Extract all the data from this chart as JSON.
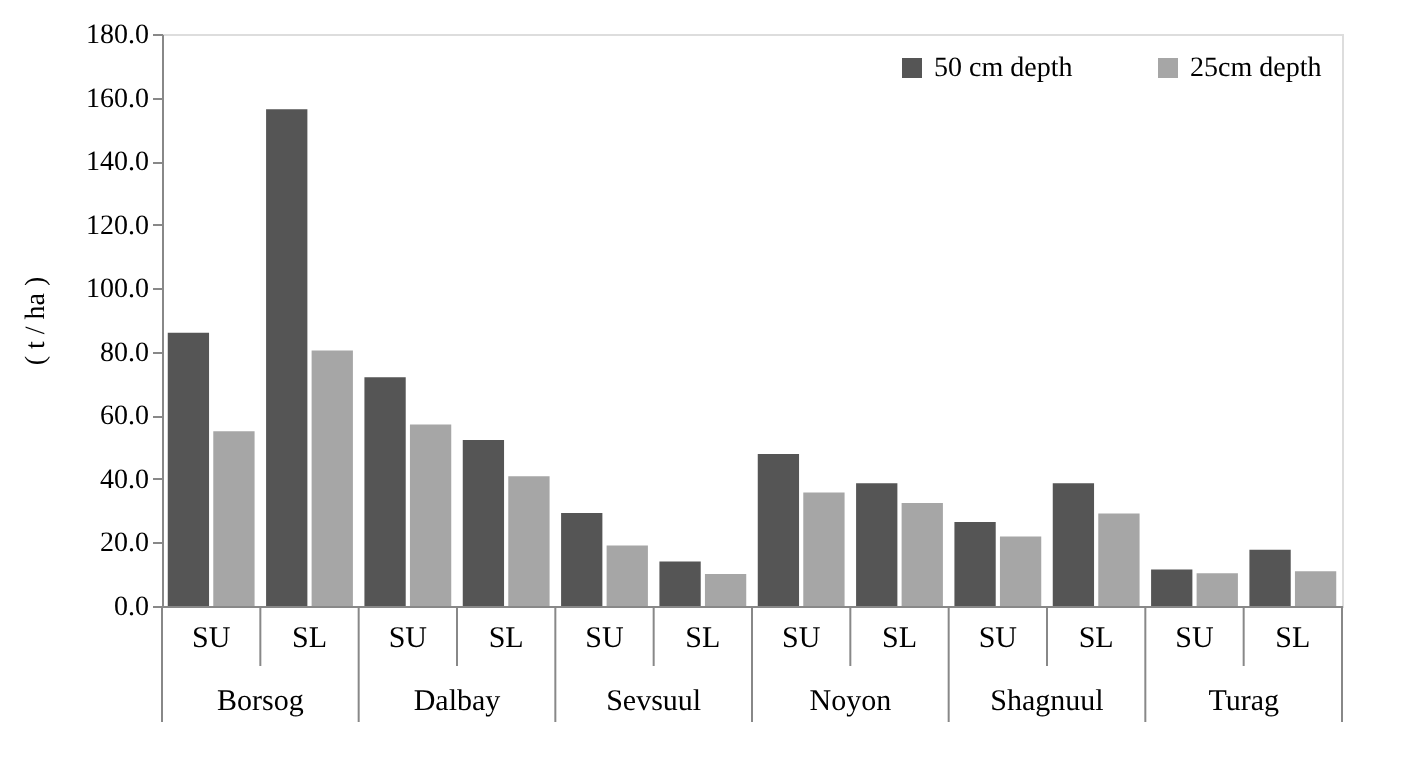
{
  "chart_data": {
    "type": "bar",
    "ylabel": "( t / ha )",
    "categories": [
      "SU",
      "SL",
      "SU",
      "SL",
      "SU",
      "SL",
      "SU",
      "SL",
      "SU",
      "SL",
      "SU",
      "SL"
    ],
    "series": [
      {
        "name": "50 cm depth",
        "color": "#555555",
        "values": [
          86.0,
          156.3,
          72.0,
          52.2,
          29.3,
          14.0,
          47.8,
          38.6,
          26.4,
          38.6,
          11.5,
          17.7
        ]
      },
      {
        "name": "25cm depth",
        "color": "#a6a6a6",
        "values": [
          55.0,
          80.4,
          57.1,
          40.8,
          19.0,
          10.1,
          35.7,
          32.4,
          21.9,
          29.1,
          10.3,
          10.9
        ]
      }
    ],
    "annotations": [
      "Borsog",
      "Dalbay",
      "Sevsuul",
      "Noyon",
      "Shagnuul",
      "Turag"
    ],
    "ylim": [
      0,
      180
    ],
    "yticks": [
      {
        "value": 0,
        "label": "0.0"
      },
      {
        "value": 20,
        "label": "20.0"
      },
      {
        "value": 40,
        "label": "40.0"
      },
      {
        "value": 60,
        "label": "60.0"
      },
      {
        "value": 80,
        "label": "80.0"
      },
      {
        "value": 100,
        "label": "100.0"
      },
      {
        "value": 120,
        "label": "120.0"
      },
      {
        "value": 140,
        "label": "140.0"
      },
      {
        "value": 160,
        "label": "160.0"
      },
      {
        "value": 180,
        "label": "180.0"
      }
    ],
    "grid": false,
    "legend": "top right"
  }
}
